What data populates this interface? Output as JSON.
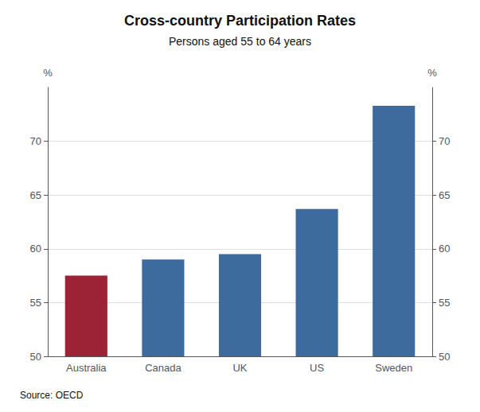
{
  "chart_data": {
    "type": "bar",
    "title": "Cross-country Participation Rates",
    "subtitle": "Persons aged 55 to 64 years",
    "source": "Source: OECD",
    "categories": [
      "Australia",
      "Canada",
      "UK",
      "US",
      "Sweden"
    ],
    "values": [
      57.5,
      59.0,
      59.5,
      63.7,
      73.3
    ],
    "colors": [
      "#9b2335",
      "#3d6b9e",
      "#3d6b9e",
      "#3d6b9e",
      "#3d6b9e"
    ],
    "ylim": [
      50,
      75
    ],
    "yticks": [
      50,
      55,
      60,
      65,
      70
    ],
    "ylabel": "%",
    "y2lim": [
      50,
      75
    ],
    "y2ticks": [
      50,
      55,
      60,
      65,
      70
    ],
    "y2label": "%",
    "grid": true
  }
}
